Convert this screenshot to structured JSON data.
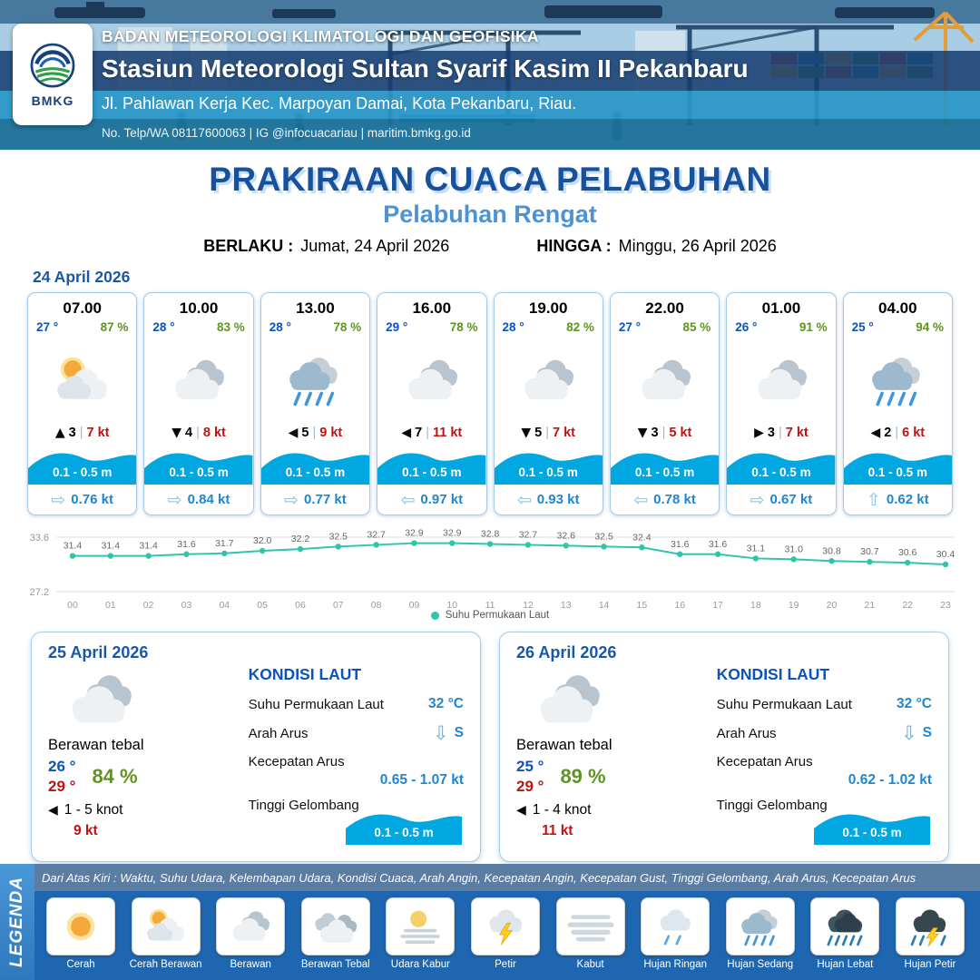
{
  "header": {
    "logo_label": "BMKG",
    "org": "BADAN METEOROLOGI KLIMATOLOGI DAN GEOFISIKA",
    "station": "Stasiun Meteorologi Sultan Syarif Kasim II Pekanbaru",
    "address": "Jl. Pahlawan Kerja Kec. Marpoyan Damai, Kota Pekanbaru, Riau.",
    "contact": "No. Telp/WA 08117600063 | IG @infocuacariau | maritim.bmkg.go.id"
  },
  "title": {
    "main": "PRAKIRAAN CUACA PELABUHAN",
    "sub": "Pelabuhan Rengat",
    "berlaku_label": "BERLAKU :",
    "berlaku_value": "Jumat, 24 April 2026",
    "hingga_label": "HINGGA :",
    "hingga_value": "Minggu, 26 April 2026"
  },
  "forecast_date": "24 April 2026",
  "labels": {
    "sep": "|"
  },
  "colors": {
    "primary_blue": "#17519e",
    "subtitle_blue": "#4d93d4",
    "temp_blue": "#0a52c0",
    "humidity_green": "#5f9422",
    "wind_red": "#c11111",
    "wave_blue": "#00a7e1",
    "current_blue": "#1f86cf",
    "sst_line_teal": "#2fc5ad"
  },
  "forecast_cards": [
    {
      "time": "07.00",
      "temp": "27 °",
      "hum": "87 %",
      "icon": "cerah-berawan",
      "wind_arrow": "▲",
      "wind_val": "3",
      "wind_speed": "7 kt",
      "wave": "0.1 - 0.5 m",
      "cur_arrow": "⇨",
      "cur": "0.76 kt"
    },
    {
      "time": "10.00",
      "temp": "28 °",
      "hum": "83 %",
      "icon": "berawan",
      "wind_arrow": "▼",
      "wind_val": "4",
      "wind_speed": "8 kt",
      "wave": "0.1 - 0.5 m",
      "cur_arrow": "⇨",
      "cur": "0.84 kt"
    },
    {
      "time": "13.00",
      "temp": "28 °",
      "hum": "78 %",
      "icon": "hujan-sedang",
      "wind_arrow": "◀",
      "wind_val": "5",
      "wind_speed": "9 kt",
      "wave": "0.1 - 0.5 m",
      "cur_arrow": "⇨",
      "cur": "0.77 kt"
    },
    {
      "time": "16.00",
      "temp": "29 °",
      "hum": "78 %",
      "icon": "berawan",
      "wind_arrow": "◀",
      "wind_val": "7",
      "wind_speed": "11 kt",
      "wave": "0.1 - 0.5 m",
      "cur_arrow": "⇦",
      "cur": "0.97 kt"
    },
    {
      "time": "19.00",
      "temp": "28 °",
      "hum": "82 %",
      "icon": "berawan",
      "wind_arrow": "▼",
      "wind_val": "5",
      "wind_speed": "7 kt",
      "wave": "0.1 - 0.5 m",
      "cur_arrow": "⇦",
      "cur": "0.93 kt"
    },
    {
      "time": "22.00",
      "temp": "27 °",
      "hum": "85 %",
      "icon": "berawan",
      "wind_arrow": "▼",
      "wind_val": "3",
      "wind_speed": "5 kt",
      "wave": "0.1 - 0.5 m",
      "cur_arrow": "⇦",
      "cur": "0.78 kt"
    },
    {
      "time": "01.00",
      "temp": "26 °",
      "hum": "91 %",
      "icon": "berawan",
      "wind_arrow": "▶",
      "wind_val": "3",
      "wind_speed": "7 kt",
      "wave": "0.1 - 0.5 m",
      "cur_arrow": "⇨",
      "cur": "0.67 kt"
    },
    {
      "time": "04.00",
      "temp": "25 °",
      "hum": "94 %",
      "icon": "hujan-sedang",
      "wind_arrow": "◀",
      "wind_val": "2",
      "wind_speed": "6 kt",
      "wave": "0.1 - 0.5 m",
      "cur_arrow": "⇧",
      "cur": "0.62 kt"
    }
  ],
  "chart_data": {
    "type": "line",
    "series_name": "Suhu Permukaan Laut",
    "x": [
      "00",
      "01",
      "02",
      "03",
      "04",
      "05",
      "06",
      "07",
      "08",
      "09",
      "10",
      "11",
      "12",
      "13",
      "14",
      "15",
      "16",
      "17",
      "18",
      "19",
      "20",
      "21",
      "22",
      "23"
    ],
    "values": [
      31.4,
      31.4,
      31.4,
      31.6,
      31.7,
      32.0,
      32.2,
      32.5,
      32.7,
      32.9,
      32.9,
      32.8,
      32.7,
      32.6,
      32.5,
      32.4,
      31.6,
      31.6,
      31.1,
      31.0,
      30.8,
      30.7,
      30.6,
      30.4
    ],
    "ylim": [
      27.2,
      33.6
    ],
    "line_color": "#2fc5ad",
    "grid": true,
    "legend_position": "bottom"
  },
  "daily_cards": [
    {
      "date": "25 April 2026",
      "icon": "berawan",
      "condition": "Berawan tebal",
      "temp_min": "26 °",
      "temp_max": "29 °",
      "humidity": "84 %",
      "wind_arrow": "◀",
      "wind_range": "1 - 5 knot",
      "gust": "9 kt",
      "sea": {
        "title": "KONDISI LAUT",
        "sst_label": "Suhu Permukaan Laut",
        "sst_value": "32 °C",
        "dir_label": "Arah Arus",
        "dir_arrow": "⇩",
        "dir_value": "S",
        "speed_label": "Kecepatan Arus",
        "speed_value": "0.65 - 1.07 kt",
        "wave_label": "Tinggi Gelombang",
        "wave_value": "0.1 - 0.5 m"
      }
    },
    {
      "date": "26 April 2026",
      "icon": "berawan",
      "condition": "Berawan tebal",
      "temp_min": "25 °",
      "temp_max": "29 °",
      "humidity": "89 %",
      "wind_arrow": "◀",
      "wind_range": "1 - 4 knot",
      "gust": "11 kt",
      "sea": {
        "title": "KONDISI LAUT",
        "sst_label": "Suhu Permukaan Laut",
        "sst_value": "32 °C",
        "dir_label": "Arah Arus",
        "dir_arrow": "⇩",
        "dir_value": "S",
        "speed_label": "Kecepatan Arus",
        "speed_value": "0.62 - 1.02 kt",
        "wave_label": "Tinggi Gelombang",
        "wave_value": "0.1 - 0.5 m"
      }
    }
  ],
  "legend": {
    "title": "LEGENDA",
    "note": "Dari Atas Kiri : Waktu, Suhu Udara, Kelembapan Udara, Kondisi Cuaca, Arah Angin, Kecepatan Angin, Kecepatan Gust, Tinggi Gelombang, Arah Arus, Kecepatan Arus",
    "items": [
      {
        "label": "Cerah",
        "icon": "cerah"
      },
      {
        "label": "Cerah Berawan",
        "icon": "cerah-berawan"
      },
      {
        "label": "Berawan",
        "icon": "berawan"
      },
      {
        "label": "Berawan Tebal",
        "icon": "berawan-tebal"
      },
      {
        "label": "Udara Kabur",
        "icon": "udara-kabur"
      },
      {
        "label": "Petir",
        "icon": "petir"
      },
      {
        "label": "Kabut",
        "icon": "kabut"
      },
      {
        "label": "Hujan Ringan",
        "icon": "hujan-ringan"
      },
      {
        "label": "Hujan Sedang",
        "icon": "hujan-sedang"
      },
      {
        "label": "Hujan Lebat",
        "icon": "hujan-lebat"
      },
      {
        "label": "Hujan Petir",
        "icon": "hujan-petir"
      }
    ]
  }
}
